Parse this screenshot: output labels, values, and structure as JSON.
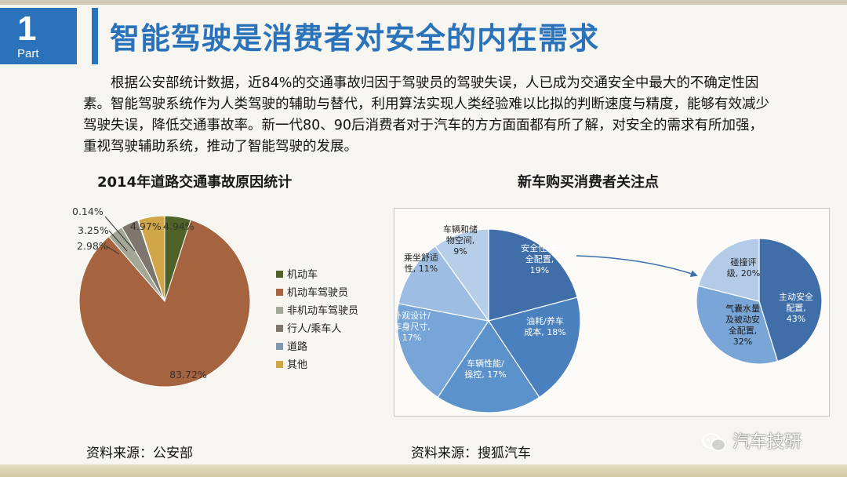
{
  "part": {
    "number": "1",
    "label": "Part"
  },
  "title": "智能驾驶是消费者对安全的内在需求",
  "paragraph": "根据公安部统计数据，近84%的交通事故归因于驾驶员的驾驶失误，人已成为交通安全中最大的不确定性因素。智能驾驶系统作为人类驾驶的辅助与替代，利用算法实现人类经验难以比拟的判断速度与精度，能够有效减少驾驶失误，降低交通事故率。新一代80、90后消费者对于汽车的方方面面都有所了解，对安全的需求有所加强，重视驾驶辅助系统，推动了智能驾驶的发展。",
  "left_chart_title": "2014年道路交通事故原因统计",
  "right_chart_title": "新车购买消费者关注点",
  "source_left": "资料来源：公安部",
  "source_right": "资料来源：搜狐汽车",
  "watermark": "汽车技研",
  "chart_data": [
    {
      "type": "pie",
      "title": "2014年道路交通事故原因统计",
      "legend_position": "right",
      "slices": [
        {
          "name": "机动车",
          "value": 4.94,
          "label": "4.94%",
          "color": "#4f6228"
        },
        {
          "name": "机动车驾驶员",
          "value": 83.72,
          "label": "83.72%",
          "color": "#a5643f"
        },
        {
          "name": "非机动车驾驶员",
          "value": 2.98,
          "label": "2.98%",
          "color": "#a3a896"
        },
        {
          "name": "行人/乘车人",
          "value": 3.25,
          "label": "3.25%",
          "color": "#7e766d"
        },
        {
          "name": "道路",
          "value": 0.14,
          "label": "0.14%",
          "color": "#8098b0"
        },
        {
          "name": "其他",
          "value": 4.97,
          "label": "4.97%",
          "color": "#d0a649"
        }
      ]
    },
    {
      "type": "pie",
      "title": "新车购买消费者关注点",
      "slices": [
        {
          "name": "安全性/安全配置",
          "value": 19,
          "label_lines": [
            "安全性/安",
            "全配置,",
            "19%"
          ],
          "color": "#3f6ea8"
        },
        {
          "name": "油耗/养车成本",
          "value": 18,
          "label_lines": [
            "油耗/养车",
            "成本, 18%"
          ],
          "color": "#4a80be"
        },
        {
          "name": "车辆性能/操控",
          "value": 17,
          "label_lines": [
            "车辆性能/",
            "操控, 17%"
          ],
          "color": "#5b92cc"
        },
        {
          "name": "外观设计/车身尺寸",
          "value": 17,
          "label_lines": [
            "外观设计/",
            "车身尺寸,",
            "17%"
          ],
          "color": "#77a5d7"
        },
        {
          "name": "乘坐舒适性",
          "value": 11,
          "label_lines": [
            "乘坐舒适",
            "性, 11%"
          ],
          "color": "#9dbde2"
        },
        {
          "name": "车辆和储物空间",
          "value": 9,
          "label_lines": [
            "车辆和储",
            "物空间,",
            "9%"
          ],
          "color": "#b7cee9"
        }
      ]
    },
    {
      "type": "pie",
      "title": "",
      "slices": [
        {
          "name": "主动安全配置",
          "value": 43,
          "label_lines": [
            "主动安全",
            "配置,",
            "43%"
          ],
          "color": "#3f6ea8"
        },
        {
          "name": "气囊水量及被动安全配置",
          "value": 32,
          "label_lines": [
            "气囊水量",
            "及被动安",
            "全配置,",
            "32%"
          ],
          "color": "#7aa6d7"
        },
        {
          "name": "碰撞评级",
          "value": 20,
          "label_lines": [
            "碰撞评",
            "级, 20%"
          ],
          "color": "#b3cbe7"
        }
      ]
    }
  ]
}
